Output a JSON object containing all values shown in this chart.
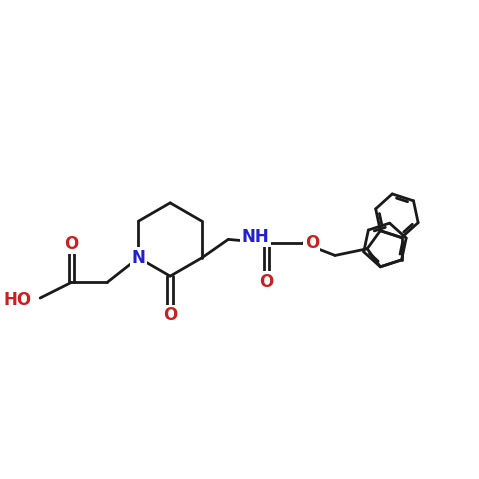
{
  "bg_color": "#ffffff",
  "bond_color": "#1a1a1a",
  "N_color": "#2020cc",
  "O_color": "#cc2020",
  "lw": 2.0,
  "figsize": [
    4.79,
    4.79
  ],
  "dpi": 100,
  "xlim": [
    0.0,
    10.0
  ],
  "ylim": [
    1.5,
    8.5
  ]
}
